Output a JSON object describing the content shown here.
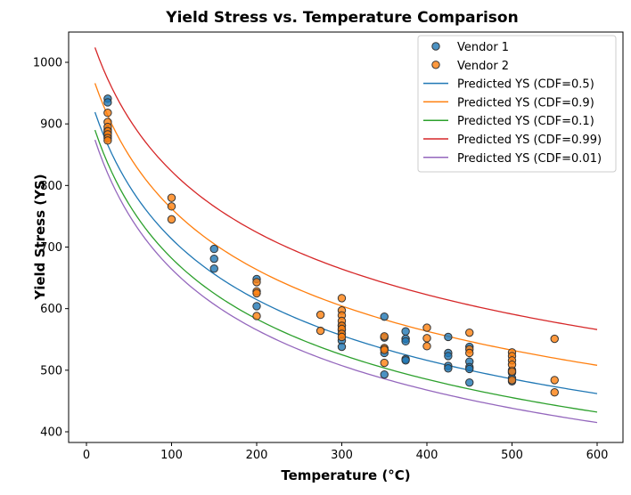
{
  "chart_data": {
    "type": "scatter",
    "title": "Yield Stress vs. Temperature Comparison",
    "xlabel": "Temperature (°C)",
    "ylabel": "Yield Stress (YS)",
    "xlim": [
      -20,
      630
    ],
    "ylim": [
      385,
      1052
    ],
    "xticks": [
      0,
      100,
      200,
      300,
      400,
      500,
      600
    ],
    "yticks": [
      400,
      500,
      600,
      700,
      800,
      900,
      1000
    ],
    "grid": false,
    "legend_position": "top-right",
    "scatter_series": [
      {
        "name": "Vendor 1",
        "color": "#1f77b4",
        "points": [
          [
            25,
            941
          ],
          [
            25,
            935
          ],
          [
            25,
            890
          ],
          [
            25,
            885
          ],
          [
            25,
            880
          ],
          [
            150,
            697
          ],
          [
            150,
            681
          ],
          [
            150,
            665
          ],
          [
            200,
            648
          ],
          [
            200,
            604
          ],
          [
            300,
            573
          ],
          [
            300,
            565
          ],
          [
            300,
            548
          ],
          [
            300,
            538
          ],
          [
            350,
            587
          ],
          [
            350,
            553
          ],
          [
            350,
            535
          ],
          [
            350,
            528
          ],
          [
            350,
            493
          ],
          [
            375,
            563
          ],
          [
            375,
            551
          ],
          [
            375,
            547
          ],
          [
            375,
            518
          ],
          [
            375,
            516
          ],
          [
            425,
            554
          ],
          [
            425,
            528
          ],
          [
            425,
            523
          ],
          [
            425,
            507
          ],
          [
            425,
            503
          ],
          [
            450,
            538
          ],
          [
            450,
            514
          ],
          [
            450,
            505
          ],
          [
            450,
            502
          ],
          [
            450,
            480
          ],
          [
            500,
            500
          ],
          [
            500,
            496
          ],
          [
            500,
            487
          ],
          [
            500,
            482
          ]
        ]
      },
      {
        "name": "Vendor 2",
        "color": "#ff7f0e",
        "points": [
          [
            25,
            918
          ],
          [
            25,
            903
          ],
          [
            25,
            895
          ],
          [
            25,
            888
          ],
          [
            25,
            883
          ],
          [
            25,
            877
          ],
          [
            25,
            873
          ],
          [
            100,
            780
          ],
          [
            100,
            766
          ],
          [
            100,
            745
          ],
          [
            200,
            643
          ],
          [
            200,
            628
          ],
          [
            200,
            625
          ],
          [
            200,
            588
          ],
          [
            275,
            590
          ],
          [
            275,
            564
          ],
          [
            300,
            617
          ],
          [
            300,
            597
          ],
          [
            300,
            589
          ],
          [
            300,
            580
          ],
          [
            300,
            572
          ],
          [
            300,
            567
          ],
          [
            300,
            559
          ],
          [
            300,
            554
          ],
          [
            350,
            555
          ],
          [
            350,
            536
          ],
          [
            350,
            533
          ],
          [
            350,
            512
          ],
          [
            400,
            569
          ],
          [
            400,
            552
          ],
          [
            400,
            539
          ],
          [
            450,
            561
          ],
          [
            450,
            534
          ],
          [
            450,
            528
          ],
          [
            500,
            529
          ],
          [
            500,
            523
          ],
          [
            500,
            516
          ],
          [
            500,
            509
          ],
          [
            500,
            498
          ],
          [
            500,
            484
          ],
          [
            550,
            551
          ],
          [
            550,
            484
          ],
          [
            550,
            464
          ]
        ]
      }
    ],
    "line_series": [
      {
        "name": "Predicted YS (CDF=0.5)",
        "color": "#1f77b4",
        "x": [
          10,
          600
        ],
        "y_at_x10": 919,
        "y_at_x600": 462
      },
      {
        "name": "Predicted YS (CDF=0.9)",
        "color": "#ff7f0e",
        "x": [
          10,
          600
        ],
        "y_at_x10": 966,
        "y_at_x600": 508
      },
      {
        "name": "Predicted YS (CDF=0.1)",
        "color": "#2ca02c",
        "x": [
          10,
          600
        ],
        "y_at_x10": 890,
        "y_at_x600": 432
      },
      {
        "name": "Predicted YS (CDF=0.99)",
        "color": "#d62728",
        "x": [
          10,
          600
        ],
        "y_at_x10": 1024,
        "y_at_x600": 566
      },
      {
        "name": "Predicted YS (CDF=0.01)",
        "color": "#9467bd",
        "x": [
          10,
          600
        ],
        "y_at_x10": 874,
        "y_at_x600": 415
      }
    ]
  }
}
